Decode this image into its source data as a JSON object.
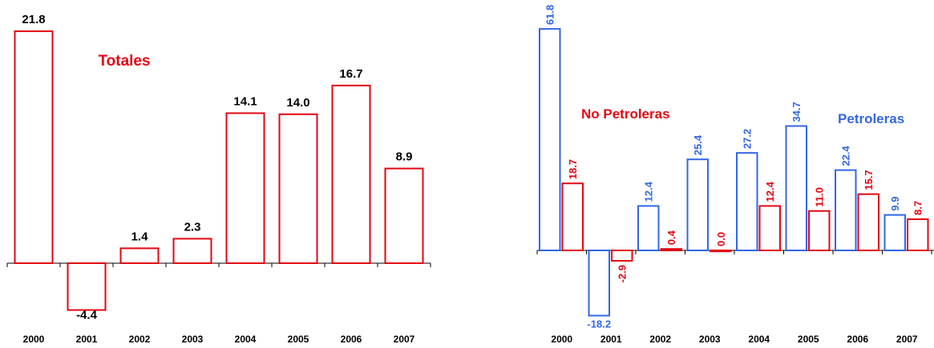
{
  "chart_data": [
    {
      "type": "bar",
      "title": "Totales",
      "categories": [
        "2000",
        "2001",
        "2002",
        "2003",
        "2004",
        "2005",
        "2006",
        "2007"
      ],
      "series": [
        {
          "values": [
            21.8,
            -4.4,
            1.4,
            2.3,
            14.1,
            14.0,
            16.7,
            8.9
          ],
          "color": "#e30613"
        }
      ],
      "data_labels": [
        "21.8",
        "-4.4",
        "1.4",
        "2.3",
        "14.1",
        "14.0",
        "16.7",
        "8.9"
      ],
      "legend": "none",
      "grid": false
    },
    {
      "type": "bar",
      "title": "",
      "categories": [
        "2000",
        "2001",
        "2002",
        "2003",
        "2004",
        "2005",
        "2006",
        "2007"
      ],
      "series": [
        {
          "name": "Petroleras",
          "values": [
            61.8,
            -18.2,
            12.4,
            25.4,
            27.2,
            34.7,
            22.4,
            9.9
          ],
          "color": "#3366e6",
          "labels": [
            "61.8",
            "-18.2",
            "12.4",
            "25.4",
            "27.2",
            "34.7",
            "22.4",
            "9.9"
          ]
        },
        {
          "name": "No Petroleras",
          "values": [
            18.7,
            -2.9,
            0.4,
            0.0,
            12.4,
            11.0,
            15.7,
            8.7
          ],
          "color": "#e30613",
          "labels": [
            "18.7",
            "-2.9",
            "0.4",
            "0.0",
            "12.4",
            "11.0",
            "15.7",
            "8.7"
          ]
        }
      ],
      "legend": "inline labels",
      "grid": false
    }
  ]
}
